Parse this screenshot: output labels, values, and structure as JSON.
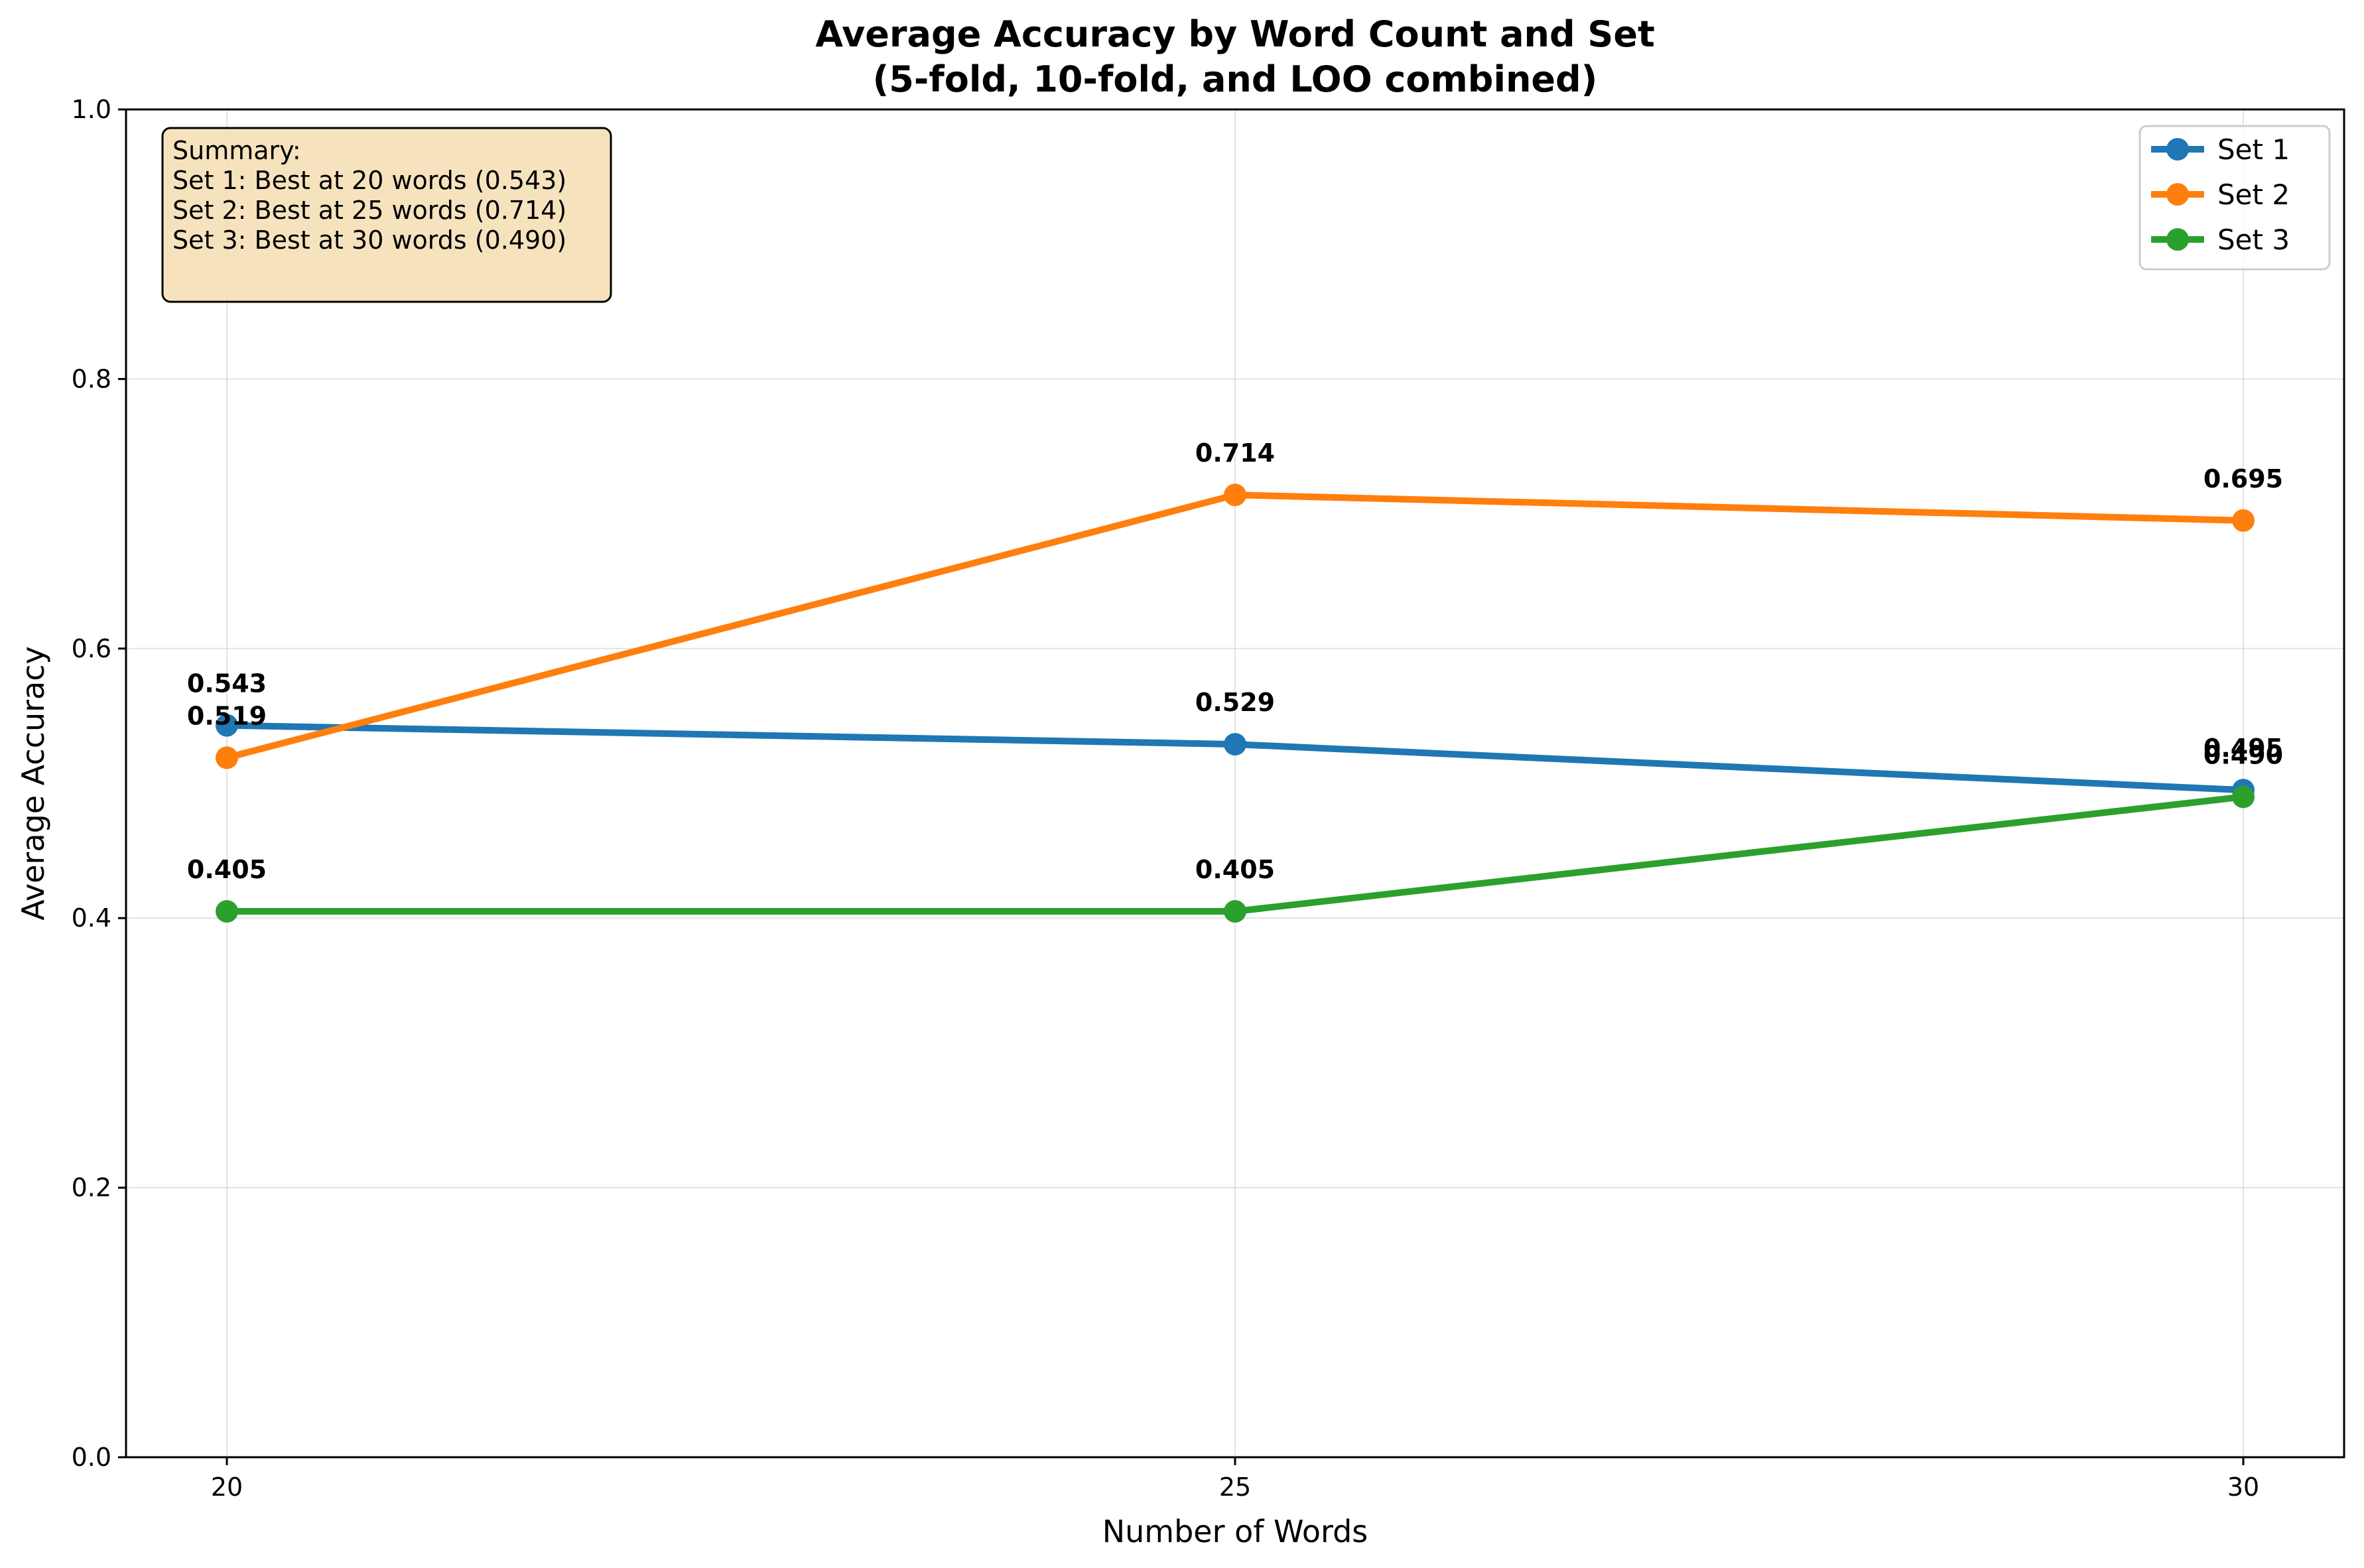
{
  "chart_data": {
    "type": "line",
    "title": "Average Accuracy by Word Count and Set",
    "subtitle": "(5-fold, 10-fold, and LOO combined)",
    "xlabel": "Number of Words",
    "ylabel": "Average Accuracy",
    "x": [
      20,
      25,
      30
    ],
    "x_ticks": [
      "20",
      "25",
      "30"
    ],
    "ylim": [
      0,
      1.0
    ],
    "y_ticks": [
      "0.0",
      "0.2",
      "0.4",
      "0.6",
      "0.8",
      "1.0"
    ],
    "grid": true,
    "legend_position": "top-right",
    "series": [
      {
        "name": "Set 1",
        "color": "#1f77b4",
        "values": [
          0.543,
          0.529,
          0.495
        ],
        "labels": [
          "0.543",
          "0.529",
          "0.495"
        ]
      },
      {
        "name": "Set 2",
        "color": "#ff7f0e",
        "values": [
          0.519,
          0.714,
          0.695
        ],
        "labels": [
          "0.519",
          "0.714",
          "0.695"
        ]
      },
      {
        "name": "Set 3",
        "color": "#2ca02c",
        "values": [
          0.405,
          0.405,
          0.49
        ],
        "labels": [
          "0.405",
          "0.405",
          "0.490"
        ]
      }
    ],
    "summary": {
      "heading": "Summary:",
      "lines": [
        "Set 1: Best at 20 words (0.543)",
        "Set 2: Best at 25 words (0.714)",
        "Set 3: Best at 30 words (0.490)"
      ]
    }
  }
}
